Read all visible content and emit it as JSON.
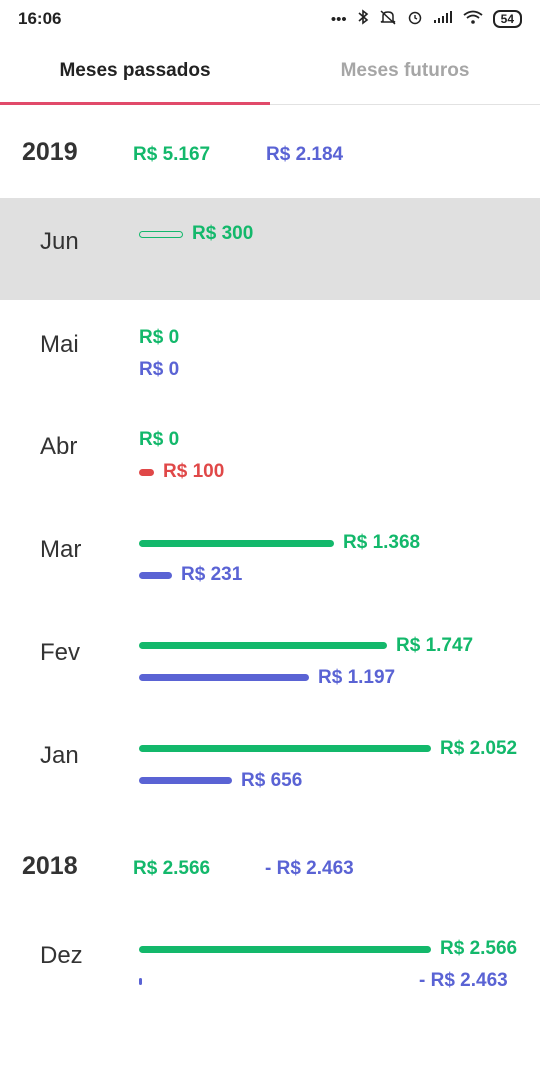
{
  "status_bar": {
    "time": "16:06",
    "battery": "54",
    "icons": [
      "more-icon",
      "bluetooth-icon",
      "mute-icon",
      "alarm-icon",
      "signal-icon",
      "wifi-icon"
    ]
  },
  "tabs": {
    "active": "Meses passados",
    "inactive": "Meses futuros"
  },
  "colors": {
    "income": "#13b86b",
    "expense": "#5a63d4",
    "negative": "#e04848",
    "accent": "#e14a6a"
  },
  "years": [
    {
      "year": "2019",
      "income": "R$ 5.167",
      "expense": "R$ 2.184",
      "months": [
        {
          "month": "Jun",
          "selected": true,
          "income": "R$ 300",
          "income_level": 0.15,
          "income_style": "outline",
          "expense": null
        },
        {
          "month": "Mai",
          "income": "R$ 0",
          "income_level": 0,
          "expense": "R$ 0",
          "expense_level": 0
        },
        {
          "month": "Abr",
          "income": "R$ 0",
          "income_level": 0,
          "expense": "R$ 100",
          "expense_level": 0.05,
          "expense_style": "red"
        },
        {
          "month": "Mar",
          "income": "R$ 1.368",
          "income_level": 0.667,
          "expense": "R$ 231",
          "expense_level": 0.113
        },
        {
          "month": "Fev",
          "income": "R$ 1.747",
          "income_level": 0.851,
          "expense": "R$ 1.197",
          "expense_level": 0.583
        },
        {
          "month": "Jan",
          "income": "R$ 2.052",
          "income_level": 1.0,
          "expense": "R$ 656",
          "expense_level": 0.32
        }
      ]
    },
    {
      "year": "2018",
      "income": "R$ 2.566",
      "expense": "- R$ 2.463",
      "months": [
        {
          "month": "Dez",
          "income": "R$ 2.566",
          "income_level": 1.0,
          "expense": "- R$ 2.463",
          "expense_level": 0.01
        }
      ]
    }
  ]
}
